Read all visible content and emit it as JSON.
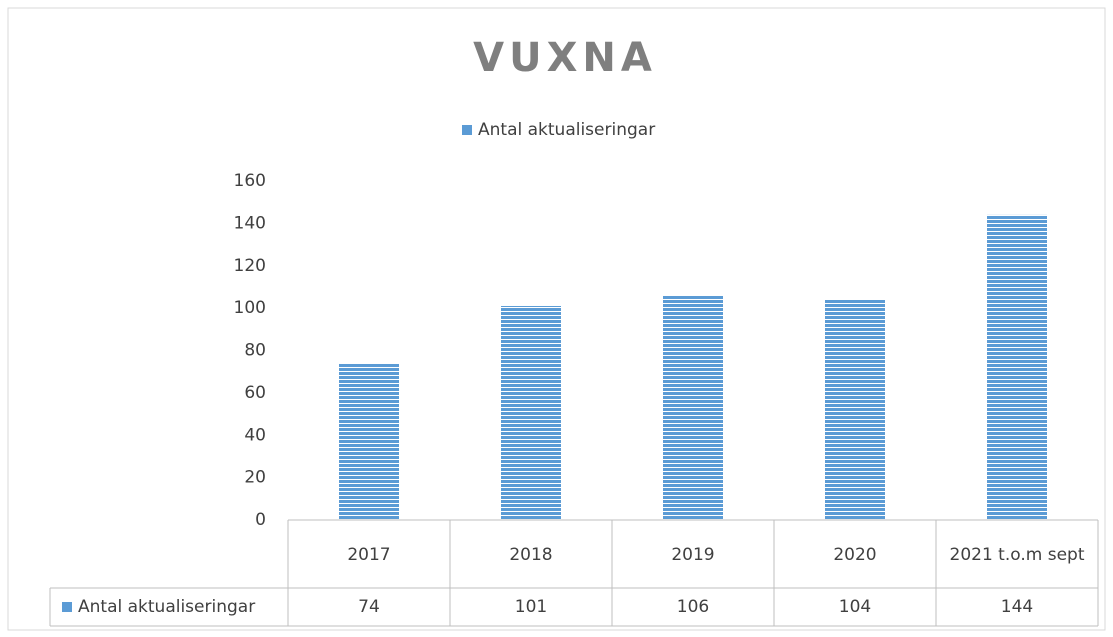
{
  "chart_data": {
    "type": "bar",
    "title": "VUXNA",
    "categories": [
      "2017",
      "2018",
      "2019",
      "2020",
      "2021 t.o.m sept"
    ],
    "series": [
      {
        "name": "Antal aktualiseringar",
        "color": "#5b9bd5",
        "values": [
          74,
          101,
          106,
          104,
          144
        ]
      }
    ],
    "ylim": [
      0,
      160
    ],
    "yticks": [
      0,
      20,
      40,
      60,
      80,
      100,
      120,
      140,
      160
    ],
    "grid": false,
    "legend": "top",
    "data_table": true
  }
}
